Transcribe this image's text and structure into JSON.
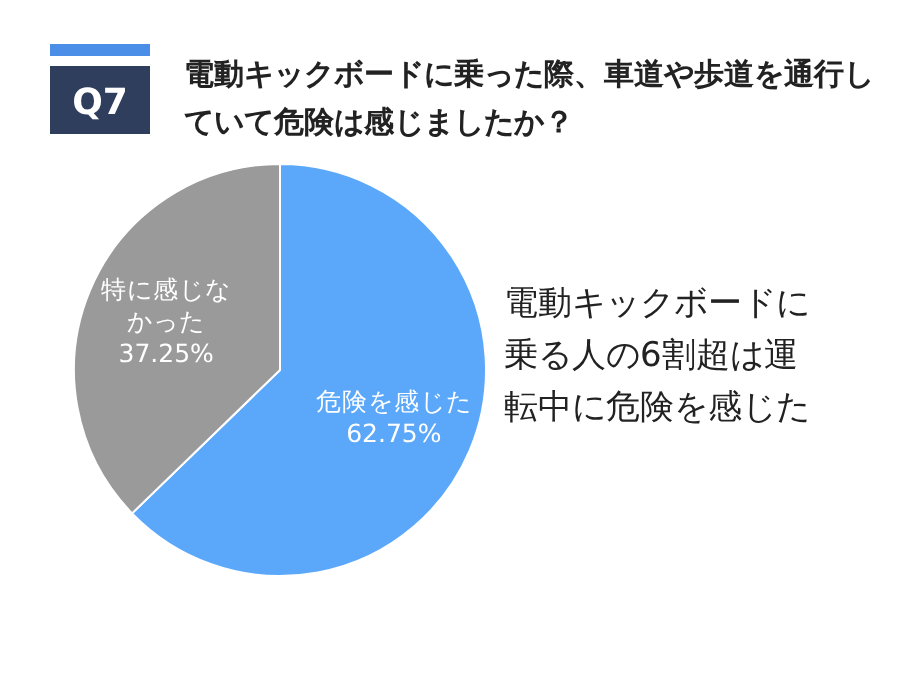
{
  "chart_data": {
    "type": "pie",
    "title": "電動キックボードに乗った際、車道や歩道を通行していて危険は感じましたか？",
    "categories": [
      "危険を感じた",
      "特に感じなかった"
    ],
    "values": [
      62.75,
      37.25
    ],
    "colors": [
      "#5ba8fb",
      "#9a9a9a"
    ],
    "value_labels": [
      "62.75%",
      "37.25%"
    ],
    "legend": false,
    "annotations": [
      "Q7",
      "電動キックボードに乗る人の6割超は運転中に危険を感じた"
    ]
  }
}
